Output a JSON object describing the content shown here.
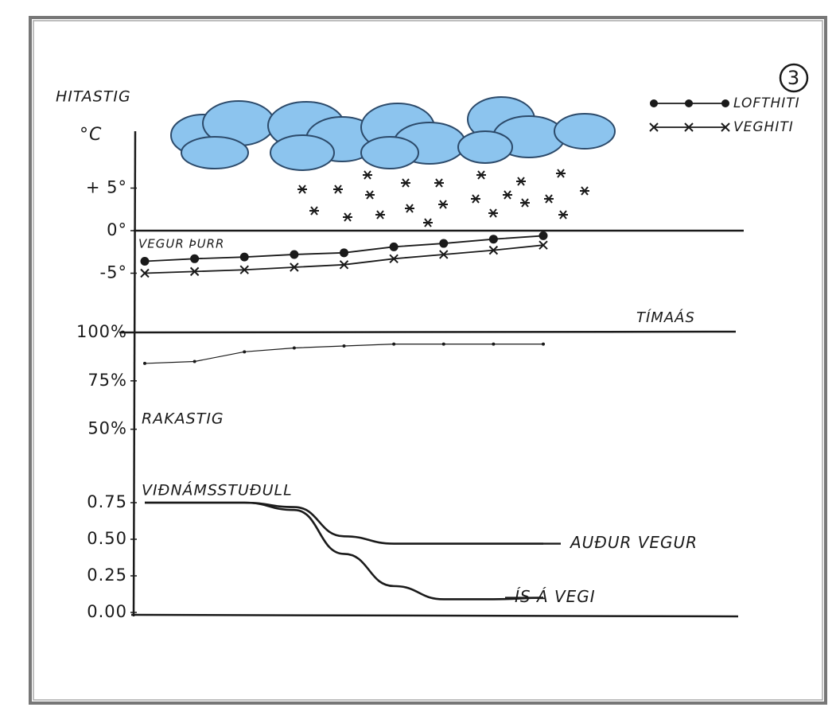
{
  "panel_number": "3",
  "chart_data": [
    {
      "type": "line",
      "y_label": "HITASTIG",
      "y_unit": "°C",
      "annotation": "VEGUR ÞURR",
      "x_label": "TÍMAÁS",
      "categories": [
        null,
        null,
        null,
        null,
        null,
        null,
        null,
        null,
        null
      ],
      "ylim": [
        -10,
        10
      ],
      "yticks": [
        {
          "value": 5,
          "label": "+ 5°"
        },
        {
          "value": 0,
          "label": "0°"
        },
        {
          "value": -5,
          "label": "-5°"
        }
      ],
      "series": [
        {
          "name": "LOFTHITI",
          "color": "#1a1a1a",
          "marker": "dot",
          "values": [
            -3.6,
            -3.3,
            -3.1,
            -2.8,
            -2.6,
            -1.9,
            -1.5,
            -1.0,
            -0.6
          ]
        },
        {
          "name": "VEGHITI",
          "color": "#1a1a1a",
          "marker": "x",
          "values": [
            -5.0,
            -4.8,
            -4.6,
            -4.3,
            -4.0,
            -3.3,
            -2.8,
            -2.3,
            -1.7
          ]
        }
      ]
    },
    {
      "type": "line",
      "y_label": "RAKASTIG",
      "categories": [
        null,
        null,
        null,
        null,
        null,
        null,
        null,
        null,
        null
      ],
      "ylim": [
        40,
        100
      ],
      "yticks": [
        {
          "value": 100,
          "label": "100%"
        },
        {
          "value": 75,
          "label": "75%"
        },
        {
          "value": 50,
          "label": "50%"
        }
      ],
      "series": [
        {
          "color": "#1a1a1a",
          "marker": "small-dot",
          "values": [
            84,
            85,
            90,
            92,
            93,
            94,
            94,
            94,
            94
          ]
        }
      ]
    },
    {
      "type": "line",
      "y_label": "VIÐNÁMSSTUÐULL",
      "categories": [
        null,
        null,
        null,
        null,
        null,
        null,
        null,
        null,
        null
      ],
      "ylim": [
        0,
        0.75
      ],
      "yticks": [
        0.75,
        {
          "value": 0.5,
          "label": "0.50"
        },
        0.25,
        {
          "value": 0,
          "label": "0.00"
        }
      ],
      "series": [
        {
          "name": "AUÐUR VEGUR",
          "color": "#1a1a1a",
          "values": [
            0.75,
            0.75,
            0.75,
            0.72,
            0.52,
            0.47,
            0.47,
            0.47,
            0.47
          ]
        },
        {
          "name": "ÍS Á VEGI",
          "color": "#1a1a1a",
          "values": [
            0.75,
            0.75,
            0.75,
            0.7,
            0.4,
            0.18,
            0.09,
            0.09,
            0.1
          ]
        }
      ]
    }
  ]
}
